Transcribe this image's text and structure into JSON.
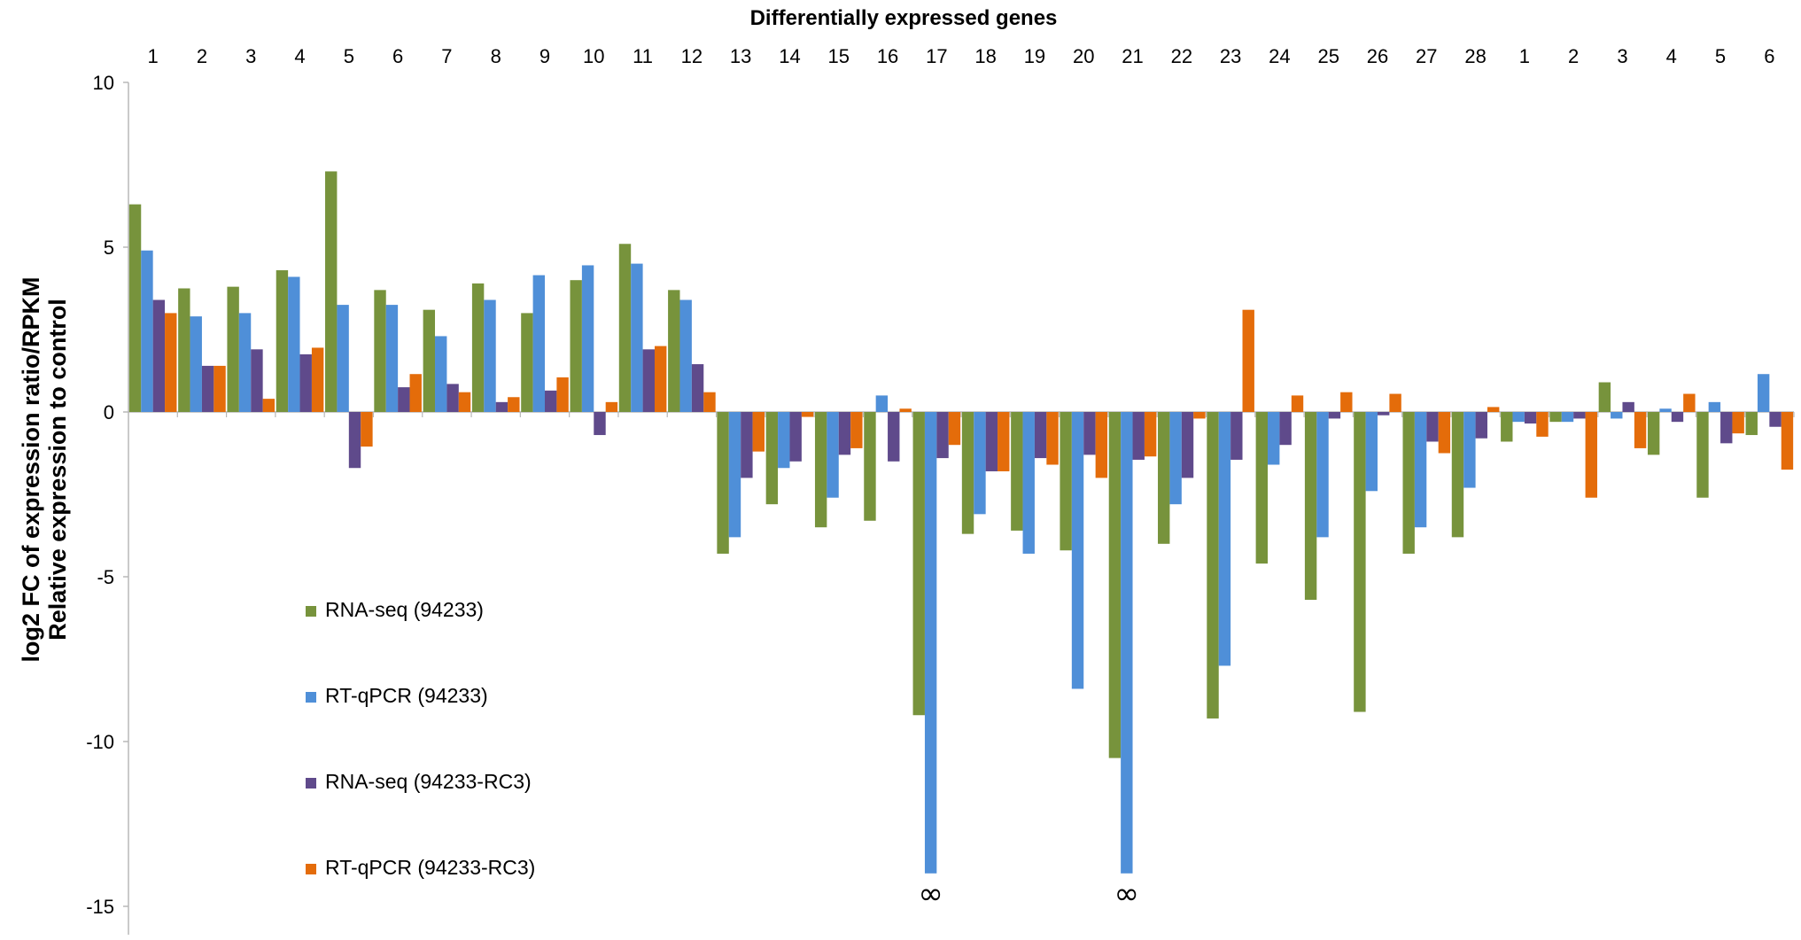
{
  "chart_data": {
    "type": "bar",
    "title": "Differentially expressed genes",
    "ylabel_line1": "log2 FC of expression ratio/RPKM",
    "ylabel_line2": "Relative expression to control",
    "xlabel": "",
    "ylim": [
      -15,
      10
    ],
    "yticks": [
      10,
      5,
      0,
      -5,
      -10,
      -15
    ],
    "categories": [
      "1",
      "2",
      "3",
      "4",
      "5",
      "6",
      "7",
      "8",
      "9",
      "10",
      "11",
      "12",
      "13",
      "14",
      "15",
      "16",
      "17",
      "18",
      "19",
      "20",
      "21",
      "22",
      "23",
      "24",
      "25",
      "26",
      "27",
      "28",
      "1",
      "2",
      "3",
      "4",
      "5",
      "6"
    ],
    "series": [
      {
        "name": "RNA-seq (94233)",
        "color": "#77933c",
        "values": [
          6.3,
          3.75,
          3.8,
          4.3,
          7.3,
          3.7,
          3.1,
          3.9,
          3.0,
          4.0,
          5.1,
          3.7,
          -4.3,
          -2.8,
          -3.5,
          -3.3,
          -9.2,
          -3.7,
          -3.6,
          -4.2,
          -10.5,
          -4.0,
          -9.3,
          -4.6,
          -5.7,
          -9.1,
          -4.3,
          -3.8,
          -0.9,
          -0.3,
          0.9,
          -1.3,
          -2.6,
          -0.7
        ]
      },
      {
        "name": "RT-qPCR (94233)",
        "color": "#4f8fd8",
        "values": [
          4.9,
          2.9,
          3.0,
          4.1,
          3.25,
          3.25,
          2.3,
          3.4,
          4.15,
          4.45,
          4.5,
          3.4,
          -3.8,
          -1.7,
          -2.6,
          0.5,
          -14.0,
          -3.1,
          -4.3,
          -8.4,
          -14.0,
          -2.8,
          -7.7,
          -1.6,
          -3.8,
          -2.4,
          -3.5,
          -2.3,
          -0.3,
          -0.3,
          -0.2,
          0.1,
          0.3,
          1.15
        ]
      },
      {
        "name": "RNA-seq (94233-RC3)",
        "color": "#5f4a8b",
        "values": [
          3.4,
          1.4,
          1.9,
          1.75,
          -1.7,
          0.75,
          0.85,
          0.3,
          0.65,
          -0.7,
          1.9,
          1.45,
          -2.0,
          -1.5,
          -1.3,
          -1.5,
          -1.4,
          -1.8,
          -1.4,
          -1.3,
          -1.45,
          -2.0,
          -1.45,
          -1.0,
          -0.2,
          -0.1,
          -0.9,
          -0.8,
          -0.35,
          -0.2,
          0.3,
          -0.3,
          -0.95,
          -0.45
        ]
      },
      {
        "name": "RT-qPCR (94233-RC3)",
        "color": "#e46c0a",
        "values": [
          3.0,
          1.4,
          0.4,
          1.95,
          -1.05,
          1.15,
          0.6,
          0.45,
          1.05,
          0.3,
          2.0,
          0.6,
          -1.2,
          -0.15,
          -1.1,
          0.1,
          -1.0,
          -1.8,
          -1.6,
          -2.0,
          -1.35,
          -0.2,
          3.1,
          0.5,
          0.6,
          0.55,
          -1.25,
          0.15,
          -0.75,
          -2.6,
          -1.1,
          0.55,
          -0.65,
          -1.75
        ]
      }
    ],
    "annotations": [
      {
        "category_index": 16,
        "series_index": 1,
        "text": "∞"
      },
      {
        "category_index": 20,
        "series_index": 1,
        "text": "∞"
      }
    ],
    "legend_position": "bottom-left",
    "grid": false
  }
}
